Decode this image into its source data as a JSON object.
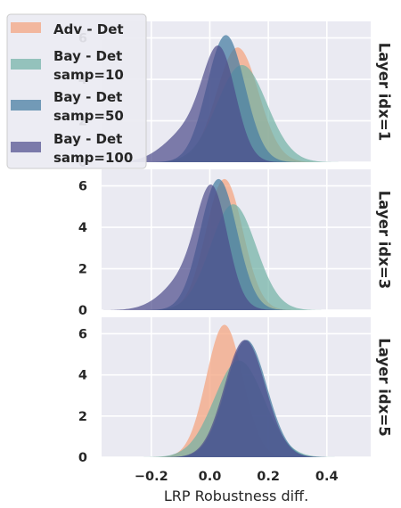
{
  "chart_data": {
    "type": "area",
    "subtype": "kde-density-facets",
    "xlabel": "LRP Robustness diff.",
    "xlim": [
      -0.37,
      0.55
    ],
    "ylim": [
      0,
      6.8
    ],
    "x_ticks": [
      -0.2,
      0.0,
      0.2,
      0.4
    ],
    "x_tick_labels": [
      "−0.2",
      "0.0",
      "0.2",
      "0.4"
    ],
    "y_ticks": [
      0,
      2,
      4,
      6
    ],
    "y_tick_labels": [
      "0",
      "2",
      "4",
      "6"
    ],
    "grid": true,
    "legend_position": "top-left",
    "series": [
      {
        "name": "Adv - Det",
        "color": "#f4a582",
        "opacity": 0.75
      },
      {
        "name": "Bay - Det\nsamp=10",
        "color": "#6fb1a4",
        "opacity": 0.7
      },
      {
        "name": "Bay - Det\nsamp=50",
        "color": "#4a7fa3",
        "opacity": 0.75
      },
      {
        "name": "Bay - Det\nsamp=100",
        "color": "#4b4a8a",
        "opacity": 0.7
      }
    ],
    "facets": [
      {
        "label": "Layer idx=1",
        "densities": [
          {
            "series": 0,
            "components": [
              {
                "w": 1.0,
                "mu": 0.095,
                "sigma": 0.072
              }
            ]
          },
          {
            "series": 1,
            "components": [
              {
                "w": 1.0,
                "mu": 0.11,
                "sigma": 0.085
              }
            ]
          },
          {
            "series": 2,
            "components": [
              {
                "w": 1.0,
                "mu": 0.055,
                "sigma": 0.065
              }
            ]
          },
          {
            "series": 3,
            "components": [
              {
                "w": 0.65,
                "mu": 0.035,
                "sigma": 0.055
              },
              {
                "w": 0.35,
                "mu": -0.06,
                "sigma": 0.085
              }
            ]
          }
        ]
      },
      {
        "label": "Layer idx=3",
        "densities": [
          {
            "series": 0,
            "components": [
              {
                "w": 1.0,
                "mu": 0.05,
                "sigma": 0.063
              }
            ]
          },
          {
            "series": 1,
            "components": [
              {
                "w": 1.0,
                "mu": 0.08,
                "sigma": 0.078
              }
            ]
          },
          {
            "series": 2,
            "components": [
              {
                "w": 1.0,
                "mu": 0.03,
                "sigma": 0.063
              }
            ]
          },
          {
            "series": 3,
            "components": [
              {
                "w": 0.62,
                "mu": 0.01,
                "sigma": 0.052
              },
              {
                "w": 0.38,
                "mu": -0.06,
                "sigma": 0.085
              }
            ]
          }
        ]
      },
      {
        "label": "Layer idx=5",
        "densities": [
          {
            "series": 0,
            "components": [
              {
                "w": 1.0,
                "mu": 0.05,
                "sigma": 0.062
              }
            ]
          },
          {
            "series": 1,
            "components": [
              {
                "w": 1.0,
                "mu": 0.1,
                "sigma": 0.085
              }
            ]
          },
          {
            "series": 2,
            "components": [
              {
                "w": 1.0,
                "mu": 0.125,
                "sigma": 0.07
              }
            ]
          },
          {
            "series": 3,
            "components": [
              {
                "w": 1.0,
                "mu": 0.12,
                "sigma": 0.07
              }
            ]
          }
        ]
      }
    ]
  }
}
